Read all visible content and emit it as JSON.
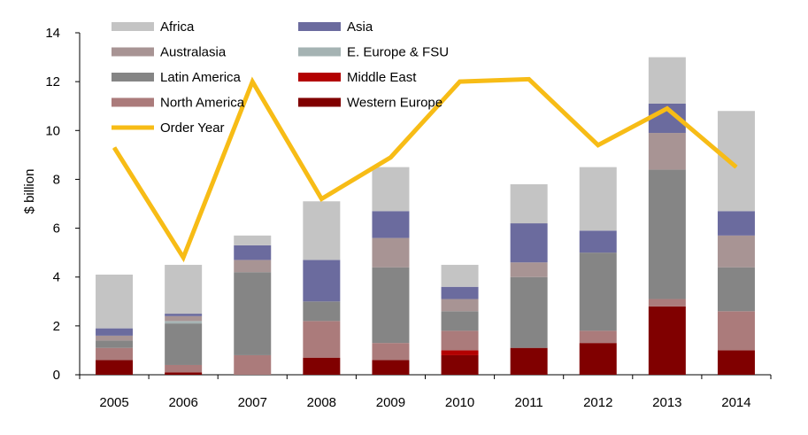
{
  "chart_data": {
    "type": "bar",
    "stacked": true,
    "title": "",
    "xlabel": "",
    "ylabel": "$ billion",
    "ylim": [
      0,
      14
    ],
    "yticks": [
      0,
      2,
      4,
      6,
      8,
      10,
      12,
      14
    ],
    "legend_position": "top-left",
    "categories": [
      "2005",
      "2006",
      "2007",
      "2008",
      "2009",
      "2010",
      "2011",
      "2012",
      "2013",
      "2014"
    ],
    "series": [
      {
        "name": "Western Europe",
        "color": "#800000",
        "values": [
          0.6,
          0.1,
          0.0,
          0.7,
          0.6,
          0.8,
          1.1,
          1.3,
          2.8,
          1.0
        ]
      },
      {
        "name": "Middle East",
        "color": "#B30000",
        "values": [
          0.0,
          0.0,
          0.0,
          0.0,
          0.0,
          0.2,
          0.0,
          0.0,
          0.0,
          0.0
        ]
      },
      {
        "name": "North America",
        "color": "#AB7B7B",
        "values": [
          0.5,
          0.3,
          0.8,
          1.5,
          0.7,
          0.8,
          0.0,
          0.5,
          0.3,
          1.6
        ]
      },
      {
        "name": "Latin America",
        "color": "#858585",
        "values": [
          0.3,
          1.7,
          3.4,
          0.8,
          3.1,
          0.8,
          2.9,
          3.2,
          5.3,
          1.8
        ]
      },
      {
        "name": "E. Europe & FSU",
        "color": "#A5B3B3",
        "values": [
          0.0,
          0.1,
          0.0,
          0.0,
          0.0,
          0.0,
          0.0,
          0.0,
          0.0,
          0.0
        ]
      },
      {
        "name": "Australasia",
        "color": "#A89494",
        "values": [
          0.2,
          0.2,
          0.5,
          0.0,
          1.2,
          0.5,
          0.6,
          0.0,
          1.5,
          1.3
        ]
      },
      {
        "name": "Asia",
        "color": "#6B6B9E",
        "values": [
          0.3,
          0.1,
          0.6,
          1.7,
          1.1,
          0.5,
          1.6,
          0.9,
          1.2,
          1.0
        ]
      },
      {
        "name": "Africa",
        "color": "#C4C4C4",
        "values": [
          2.2,
          2.0,
          0.4,
          2.4,
          1.8,
          0.9,
          1.6,
          2.6,
          1.9,
          4.1
        ]
      }
    ],
    "line_series": {
      "name": "Order Year",
      "color": "#F7BC16",
      "values": [
        9.3,
        4.8,
        12.0,
        7.2,
        8.9,
        12.0,
        12.1,
        9.4,
        10.9,
        8.5
      ]
    },
    "legend_order": [
      "Africa",
      "Asia",
      "Australasia",
      "E. Europe & FSU",
      "Latin America",
      "Middle East",
      "North America",
      "Western Europe",
      "Order Year"
    ]
  }
}
